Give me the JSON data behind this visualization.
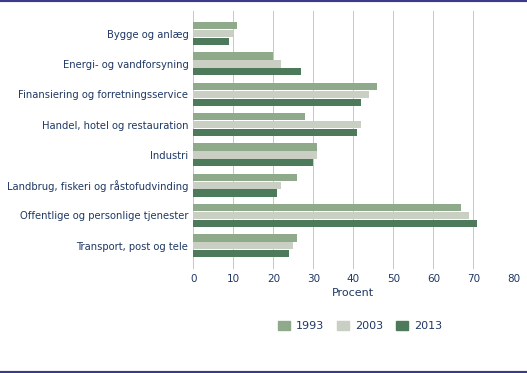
{
  "categories": [
    "Bygge og anlæg",
    "Energi- og vandforsyning",
    "Finansiering og forretningsservice",
    "Handel, hotel og restauration",
    "Industri",
    "Landbrug, fiskeri og råstofudvinding",
    "Offentlige og personlige tjenester",
    "Transport, post og tele"
  ],
  "series": {
    "1993": [
      11,
      20,
      46,
      28,
      31,
      26,
      67,
      26
    ],
    "2003": [
      10,
      22,
      44,
      42,
      31,
      22,
      69,
      25
    ],
    "2013": [
      9,
      27,
      42,
      41,
      30,
      21,
      71,
      24
    ]
  },
  "colors": {
    "1993": "#8faa8b",
    "2003": "#c9cfc2",
    "2013": "#4d7a5a"
  },
  "xlabel": "Procent",
  "xlim": [
    0,
    80
  ],
  "xticks": [
    0,
    10,
    20,
    30,
    40,
    50,
    60,
    70,
    80
  ],
  "legend_labels": [
    "1993",
    "2003",
    "2013"
  ],
  "background_color": "#ffffff",
  "bar_height": 0.26,
  "label_color": "#1f3864",
  "grid_color": "#c8c8c8",
  "border_color": "#3b3b8a"
}
